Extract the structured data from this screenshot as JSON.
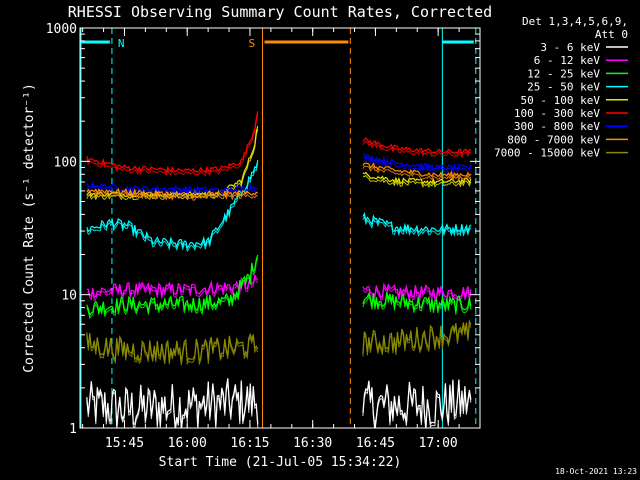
{
  "chart_data": {
    "type": "line",
    "title": "RHESSI Observing Summary Count Rates, Corrected",
    "xlabel": "Start Time (21-Jul-05 15:34:22)",
    "ylabel": "Corrected Count Rate (s⁻¹ detector⁻¹)",
    "y_scale": "log",
    "ylim": [
      1,
      1000
    ],
    "y_ticks": [
      {
        "value": 1,
        "label": "1"
      },
      {
        "value": 10,
        "label": "10"
      },
      {
        "value": 100,
        "label": "100"
      },
      {
        "value": 1000,
        "label": "1000"
      }
    ],
    "x_range": [
      "15:34:22",
      "17:10"
    ],
    "x_ticks": [
      {
        "value": "15:45",
        "label": "15:45"
      },
      {
        "value": "16:00",
        "label": "16:00"
      },
      {
        "value": "16:15",
        "label": "16:15"
      },
      {
        "value": "16:30",
        "label": "16:30"
      },
      {
        "value": "16:45",
        "label": "16:45"
      },
      {
        "value": "17:00",
        "label": "17:00"
      }
    ],
    "legend": {
      "header": [
        "Det 1,3,4,5,6,9,",
        "Att 0"
      ],
      "placement": "right"
    },
    "flags": [
      {
        "label": "N",
        "color": "#00ffff",
        "start": "15:34:22",
        "end": "15:42"
      },
      {
        "label": "S",
        "color": "#ff8c00",
        "start": "16:18",
        "end": "16:39"
      },
      {
        "label": "",
        "color": "#00ffff",
        "start": "17:01",
        "end": "17:09"
      }
    ],
    "series": [
      {
        "name": "3 - 6 keV",
        "color": "#ffffff",
        "segments": [
          {
            "x": [
              "15:36",
              "15:45",
              "16:00",
              "16:15",
              "16:17"
            ],
            "y": [
              1.5,
              1.4,
              1.5,
              1.6,
              1.6
            ]
          },
          {
            "x": [
              "16:42",
              "16:50",
              "17:00",
              "17:08"
            ],
            "y": [
              1.5,
              1.5,
              1.5,
              1.6
            ]
          }
        ]
      },
      {
        "name": "6 - 12 keV",
        "color": "#ff00ff",
        "segments": [
          {
            "x": [
              "15:36",
              "15:45",
              "16:00",
              "16:10",
              "16:15",
              "16:17"
            ],
            "y": [
              10.5,
              11,
              11,
              11.5,
              12,
              13
            ]
          },
          {
            "x": [
              "16:42",
              "16:50",
              "17:00",
              "17:08"
            ],
            "y": [
              11,
              10.5,
              10.5,
              10.5
            ]
          }
        ]
      },
      {
        "name": "12 - 25 keV",
        "color": "#00ff00",
        "segments": [
          {
            "x": [
              "15:36",
              "15:45",
              "16:00",
              "16:10",
              "16:15",
              "16:17"
            ],
            "y": [
              8,
              8.5,
              8.5,
              9,
              14,
              21
            ]
          },
          {
            "x": [
              "16:42",
              "16:50",
              "17:00",
              "17:08"
            ],
            "y": [
              9.5,
              9,
              8.5,
              8.5
            ]
          }
        ]
      },
      {
        "name": "25 - 50 keV",
        "color": "#00ffff",
        "segments": [
          {
            "x": [
              "15:36",
              "15:42",
              "15:46",
              "15:52",
              "16:00",
              "16:05",
              "16:10",
              "16:15",
              "16:17"
            ],
            "y": [
              31,
              35,
              33,
              25,
              24,
              25,
              42,
              75,
              100
            ]
          },
          {
            "x": [
              "16:42",
              "16:50",
              "17:00",
              "17:08"
            ],
            "y": [
              38,
              32,
              31,
              32
            ]
          }
        ]
      },
      {
        "name": "50 - 100 keV",
        "color": "#e6e600",
        "segments": [
          {
            "x": [
              "15:36",
              "15:45",
              "16:00",
              "16:08",
              "16:13",
              "16:16",
              "16:17"
            ],
            "y": [
              57,
              57,
              57,
              58,
              72,
              130,
              200
            ]
          },
          {
            "x": [
              "16:42",
              "16:50",
              "17:00",
              "17:08"
            ],
            "y": [
              80,
              72,
              70,
              72
            ]
          }
        ]
      },
      {
        "name": "100 - 300 keV",
        "color": "#ff0000",
        "segments": [
          {
            "x": [
              "15:36",
              "15:45",
              "16:00",
              "16:08",
              "16:13",
              "16:16",
              "16:17"
            ],
            "y": [
              105,
              90,
              85,
              88,
              100,
              170,
              260
            ]
          },
          {
            "x": [
              "16:42",
              "16:50",
              "17:00",
              "17:08"
            ],
            "y": [
              145,
              125,
              118,
              118
            ]
          }
        ]
      },
      {
        "name": "300 - 800 keV",
        "color": "#0000ff",
        "segments": [
          {
            "x": [
              "15:36",
              "15:45",
              "16:00",
              "16:10",
              "16:15",
              "16:17"
            ],
            "y": [
              67,
              63,
              62,
              61,
              64,
              65
            ]
          },
          {
            "x": [
              "16:42",
              "16:50",
              "17:00",
              "17:08"
            ],
            "y": [
              110,
              97,
              90,
              90
            ]
          }
        ]
      },
      {
        "name": "800 - 7000 keV",
        "color": "#ff8c00",
        "segments": [
          {
            "x": [
              "15:36",
              "15:45",
              "16:00",
              "16:10",
              "16:15",
              "16:17"
            ],
            "y": [
              61,
              59,
              56,
              57,
              58,
              59
            ]
          },
          {
            "x": [
              "16:42",
              "16:50",
              "17:00",
              "17:08"
            ],
            "y": [
              95,
              85,
              79,
              80
            ]
          }
        ]
      },
      {
        "name": "7000 - 15000 keV",
        "color": "#8b8b00",
        "segments": [
          {
            "x": [
              "15:36",
              "15:45",
              "16:00",
              "16:10",
              "16:17"
            ],
            "y": [
              4.3,
              3.9,
              3.8,
              4,
              4.2
            ]
          },
          {
            "x": [
              "16:42",
              "16:50",
              "17:00",
              "17:08"
            ],
            "y": [
              4.4,
              4.5,
              5,
              5.2
            ]
          }
        ]
      }
    ]
  },
  "footer": {
    "timestamp": "18-Oct-2021 13:23"
  }
}
